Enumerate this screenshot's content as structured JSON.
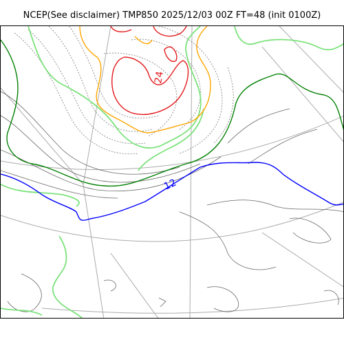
{
  "title": "NCEP(See disclaimer) TMP850 2025/12/03 00Z FT=48 (init 0100Z)",
  "map": {
    "contour_labels": [
      {
        "text": "24",
        "color": "#e41a1c"
      },
      {
        "text": "12",
        "color": "#0000ff"
      }
    ],
    "colors": {
      "coast": "#000000",
      "graticule": "#aaaaaa",
      "isotherm_24": "#e41a1c",
      "isotherm_18": "#ffa500",
      "isotherm_12": "#0000ff",
      "isotherm_6": "#00ff00",
      "isotherm_0": "#008000",
      "terrain_contours": "#666666"
    }
  }
}
